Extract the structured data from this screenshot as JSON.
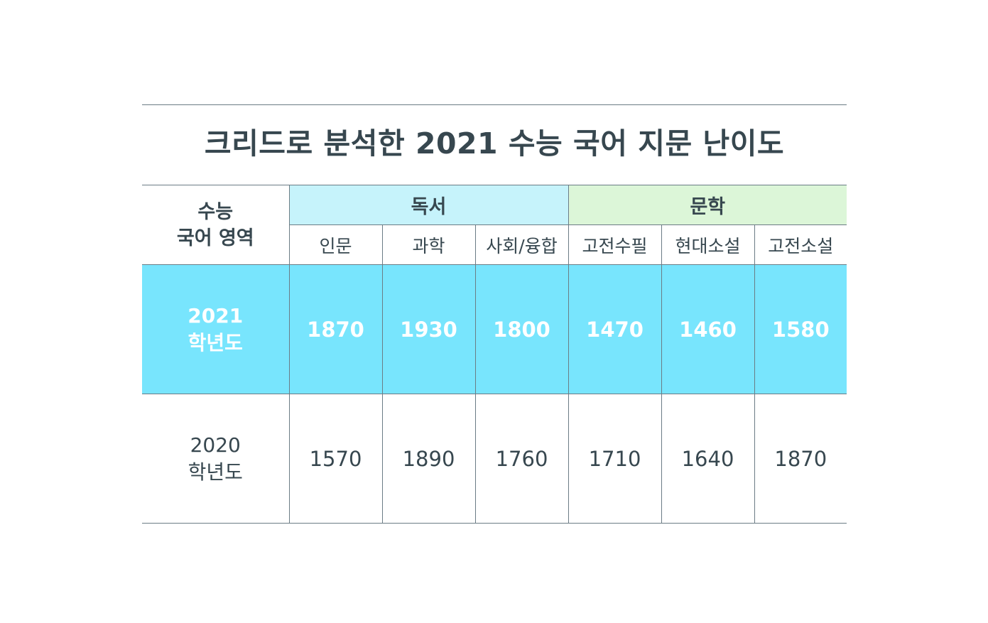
{
  "chart_data": {
    "type": "table",
    "title": "크리드로 분석한 2021 수능 국어 지문 난이도",
    "row_header_label": [
      "수능",
      "국어 영역"
    ],
    "groups": [
      {
        "name": "독서",
        "color": "#c6f3fb",
        "columns": [
          "인문",
          "과학",
          "사회/융합"
        ]
      },
      {
        "name": "문학",
        "color": "#dcf6d8",
        "columns": [
          "고전수필",
          "현대소설",
          "고전소설"
        ]
      }
    ],
    "rows": [
      {
        "label": [
          "2021",
          "학년도"
        ],
        "values": [
          1870,
          1930,
          1800,
          1470,
          1460,
          1580
        ],
        "highlight_color": "#78e5fd"
      },
      {
        "label": [
          "2020",
          "학년도"
        ],
        "values": [
          1570,
          1890,
          1760,
          1710,
          1640,
          1870
        ]
      }
    ]
  }
}
